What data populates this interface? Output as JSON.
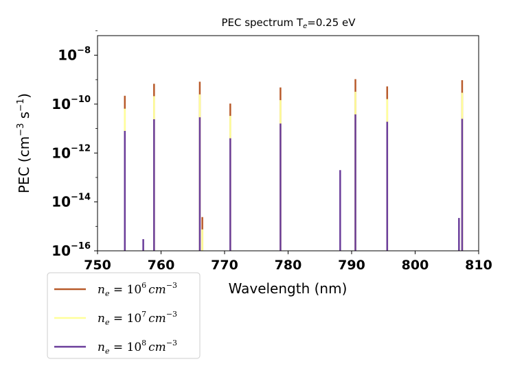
{
  "chart_data": {
    "type": "bar",
    "title_main": "PEC spectrum  T",
    "title_sub": "e",
    "title_rest": "=0.25 eV",
    "xlabel": "Wavelength (nm)",
    "ylabel_prefix": "PEC (cm",
    "ylabel_exp1": "−3",
    "ylabel_mid": " s",
    "ylabel_exp2": "−1",
    "ylabel_suffix": ")",
    "xlim": [
      750,
      810
    ],
    "ylim_log10": [
      -16,
      -7.2
    ],
    "yscale": "log",
    "x_ticks": [
      750,
      760,
      770,
      780,
      790,
      800,
      810
    ],
    "x_tick_labels": [
      "750",
      "760",
      "770",
      "780",
      "790",
      "800",
      "810"
    ],
    "y_ticks_log10": [
      -16,
      -14,
      -12,
      -10,
      -8
    ],
    "y_tick_base": "10",
    "y_tick_exps": [
      "−16",
      "−14",
      "−12",
      "−10",
      "−8"
    ],
    "series": [
      {
        "name": "ne=1e6",
        "legend_label": "n_e = 10^6 cm^-3",
        "legend_base": "n",
        "legend_sub": "e",
        "legend_eq": " = 10",
        "legend_exp": "6",
        "legend_unit": "cm",
        "legend_unit_exp": "−3",
        "color": "#b85a2a",
        "lines": [
          {
            "x": 754.3,
            "y": 2.2e-10
          },
          {
            "x": 758.9,
            "y": 6.8e-10
          },
          {
            "x": 766.1,
            "y": 8.2e-10
          },
          {
            "x": 766.5,
            "y": 2.4e-15
          },
          {
            "x": 770.9,
            "y": 1.05e-10
          },
          {
            "x": 778.8,
            "y": 4.8e-10
          },
          {
            "x": 790.6,
            "y": 1.05e-09
          },
          {
            "x": 795.6,
            "y": 5.3e-10
          },
          {
            "x": 807.4,
            "y": 9.5e-10
          }
        ]
      },
      {
        "name": "ne=1e7",
        "legend_label": "n_e = 10^7 cm^-3",
        "legend_base": "n",
        "legend_sub": "e",
        "legend_eq": " = 10",
        "legend_exp": "7",
        "legend_unit": "cm",
        "legend_unit_exp": "−3",
        "color": "#ffff99",
        "lines": [
          {
            "x": 754.3,
            "y": 6.5e-11
          },
          {
            "x": 758.9,
            "y": 2.1e-10
          },
          {
            "x": 766.1,
            "y": 2.5e-10
          },
          {
            "x": 766.5,
            "y": 7.5e-16
          },
          {
            "x": 770.9,
            "y": 3.3e-11
          },
          {
            "x": 778.8,
            "y": 1.45e-10
          },
          {
            "x": 790.6,
            "y": 3.2e-10
          },
          {
            "x": 795.6,
            "y": 1.6e-10
          },
          {
            "x": 807.4,
            "y": 2.9e-10
          }
        ]
      },
      {
        "name": "ne=1e8",
        "legend_label": "n_e = 10^8 cm^-3",
        "legend_base": "n",
        "legend_sub": "e",
        "legend_eq": " = 10",
        "legend_exp": "8",
        "legend_unit": "cm",
        "legend_unit_exp": "−3",
        "color": "#6a3d9a",
        "lines": [
          {
            "x": 754.3,
            "y": 8e-12
          },
          {
            "x": 757.2,
            "y": 3e-16
          },
          {
            "x": 758.9,
            "y": 2.4e-11
          },
          {
            "x": 766.1,
            "y": 2.9e-11
          },
          {
            "x": 770.9,
            "y": 4e-12
          },
          {
            "x": 778.8,
            "y": 1.6e-11
          },
          {
            "x": 788.2,
            "y": 2e-13
          },
          {
            "x": 790.6,
            "y": 3.8e-11
          },
          {
            "x": 795.6,
            "y": 1.9e-11
          },
          {
            "x": 806.9,
            "y": 2.2e-15
          },
          {
            "x": 807.4,
            "y": 2.5e-11
          }
        ]
      }
    ],
    "legend_position": "lower-left"
  }
}
